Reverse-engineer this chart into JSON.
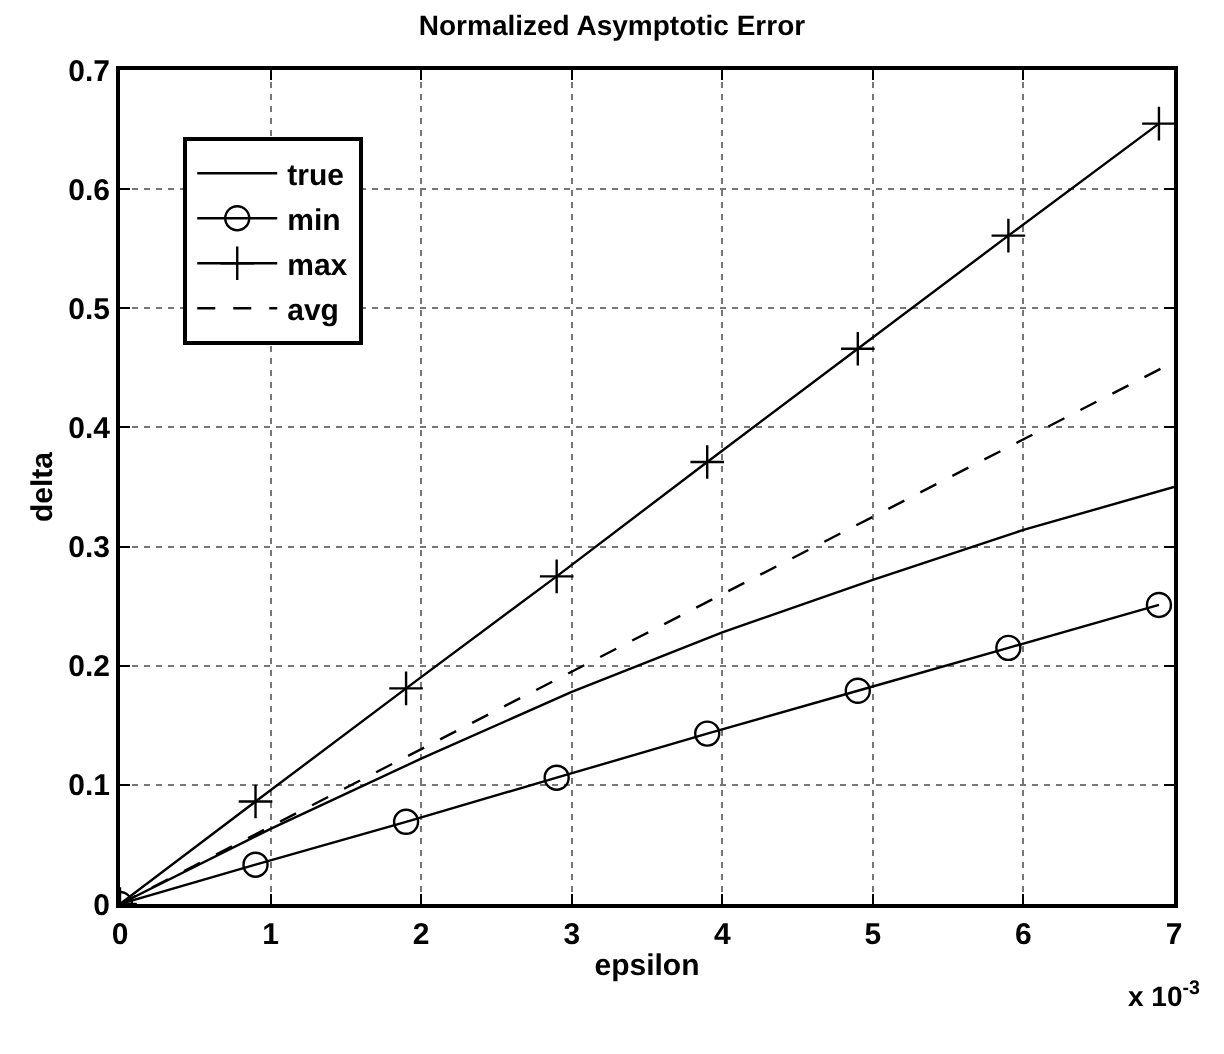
{
  "chart_data": {
    "type": "line",
    "title": "Normalized Asymptotic Error",
    "xlabel": "epsilon",
    "ylabel": "delta",
    "annotations": [
      "x 10$^{-3}$"
    ],
    "series": [
      {
        "name": "true",
        "color": "#000000",
        "marker": "none",
        "line_style": "solid",
        "x": [
          0,
          1,
          2,
          3,
          4,
          5,
          6,
          7
        ],
        "values": [
          0,
          0.063,
          0.122,
          0.178,
          0.228,
          0.272,
          0.314,
          0.35
        ]
      },
      {
        "name": "min",
        "color": "#000000",
        "marker": "circle",
        "line_style": "solid",
        "x": [
          0,
          0.9,
          1.9,
          2.9,
          3.9,
          4.9,
          5.9,
          6.9
        ],
        "values": [
          0,
          0.033,
          0.069,
          0.106,
          0.143,
          0.179,
          0.215,
          0.251
        ]
      },
      {
        "name": "max",
        "color": "#000000",
        "marker": "cross",
        "line_style": "solid",
        "x": [
          0,
          0.9,
          1.9,
          2.9,
          3.9,
          4.9,
          5.9,
          6.9
        ],
        "values": [
          0,
          0.086,
          0.181,
          0.275,
          0.371,
          0.466,
          0.561,
          0.655
        ]
      },
      {
        "name": "avg",
        "color": "#000000",
        "marker": "none",
        "line_style": "dashed",
        "x": [
          0,
          7
        ],
        "values": [
          0,
          0.455
        ]
      }
    ],
    "xlim": [
      0,
      7
    ],
    "xticks": [
      0,
      1,
      2,
      3,
      4,
      5,
      6,
      7
    ],
    "ylim": [
      0,
      0.7
    ],
    "yticks": [
      0,
      0.1,
      0.2,
      0.3,
      0.4,
      0.5,
      0.6,
      0.7
    ],
    "grid": true,
    "legend": "top left"
  }
}
